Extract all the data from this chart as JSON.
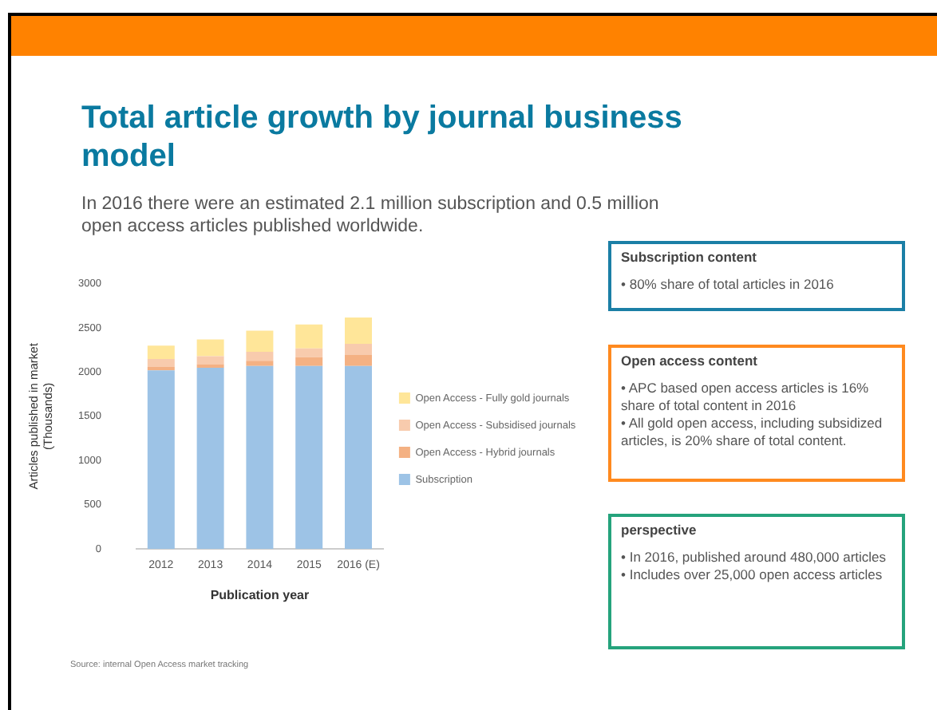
{
  "chart_data": {
    "type": "bar",
    "title": "Total article growth by journal business model",
    "subtitle": "In 2016 there were an estimated 2.1 million subscription and 0.5 million open access articles published worldwide.",
    "xlabel": "Publication year",
    "ylabel": "Articles published in market\n(Thousands)",
    "categories": [
      "2012",
      "2013",
      "2014",
      "2015",
      "2016 (E)"
    ],
    "stacked": true,
    "series": [
      {
        "name": "Subscription",
        "color": "#9dc3e6",
        "values": [
          2020,
          2050,
          2070,
          2070,
          2070
        ]
      },
      {
        "name": "Open Access - Hybrid journals",
        "color": "#f4b183",
        "values": [
          40,
          40,
          60,
          100,
          130
        ]
      },
      {
        "name": "Open Access - Subsidised journals",
        "color": "#f8cbad",
        "values": [
          90,
          90,
          100,
          100,
          120
        ]
      },
      {
        "name": "Open Access - Fully gold journals",
        "color": "#ffe699",
        "values": [
          150,
          190,
          240,
          270,
          300
        ]
      }
    ],
    "ylim": [
      0,
      3000
    ],
    "yticks": [
      0,
      500,
      1000,
      1500,
      2000,
      2500,
      3000
    ],
    "grid": false,
    "legend": "right",
    "annotations": [
      "Subscription content\n• 80% share of total articles in 2016",
      "Open access content\n• APC based open access articles is 16% share of total content in 2016\n• All gold open access, including subsidized articles, is 20% share of total content.",
      "perspective\n• In 2016, published around 480,000 articles\n• Includes over 25,000 open access articles",
      "Source: internal Open Access market tracking"
    ]
  }
}
